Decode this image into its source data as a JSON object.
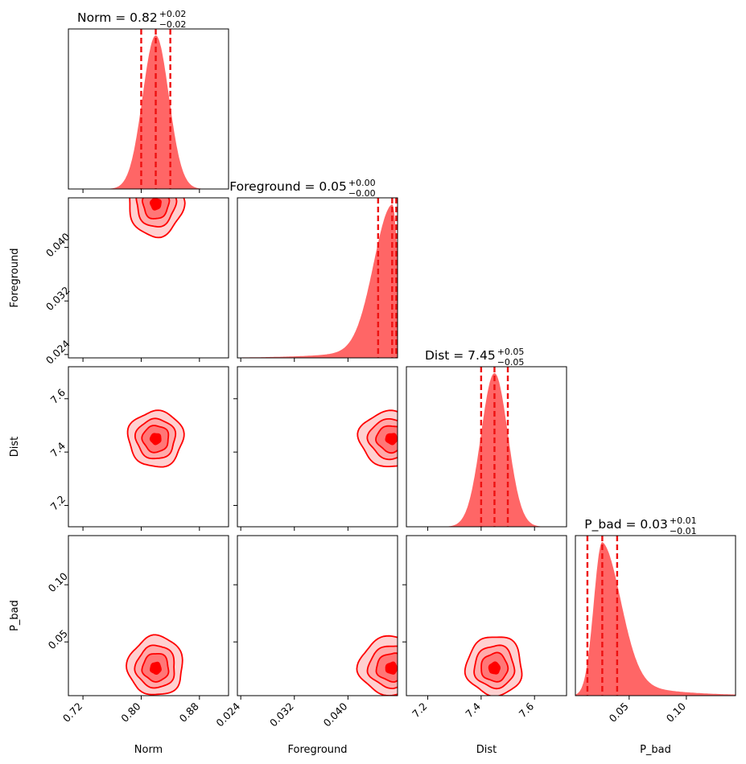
{
  "chart_data": {
    "type": "corner",
    "parameters": [
      {
        "key": "norm",
        "xlabel": "Norm",
        "ylabel": "",
        "range": [
          0.7,
          0.92
        ],
        "ticks": [
          0.72,
          0.8,
          0.88
        ],
        "tick_labels": [
          "0.72",
          "0.80",
          "0.88"
        ],
        "median": 0.82,
        "q16": 0.8,
        "q84": 0.84,
        "sigma": 0.018,
        "skew": 0,
        "title": {
          "prefix": "Norm = 0.82",
          "sup": "+0.02",
          "sub": "−0.02"
        }
      },
      {
        "key": "foreground",
        "xlabel": "Foreground",
        "ylabel": "Foreground",
        "range": [
          0.0235,
          0.0474
        ],
        "ticks": [
          0.024,
          0.032,
          0.04
        ],
        "tick_labels": [
          "0.024",
          "0.032",
          "0.040"
        ],
        "median": 0.0466,
        "q16": 0.0445,
        "q84": 0.0472,
        "sigma": 0.0018,
        "skew": -1,
        "title": {
          "prefix": "Foreground = 0.05",
          "sup": "+0.00",
          "sub": "−0.00"
        }
      },
      {
        "key": "dist",
        "xlabel": "Dist",
        "ylabel": "Dist",
        "range": [
          7.12,
          7.72
        ],
        "ticks": [
          7.2,
          7.4,
          7.6
        ],
        "tick_labels": [
          "7.2",
          "7.4",
          "7.6"
        ],
        "median": 7.45,
        "q16": 7.4,
        "q84": 7.5,
        "sigma": 0.05,
        "skew": 0,
        "title": {
          "prefix": "Dist = 7.45",
          "sup": "+0.05",
          "sub": "−0.05"
        }
      },
      {
        "key": "p_bad",
        "xlabel": "P_bad",
        "ylabel": "P_bad",
        "range": [
          0.003,
          0.143
        ],
        "ticks": [
          0.05,
          0.1
        ],
        "tick_labels": [
          "0.05",
          "0.10"
        ],
        "median": 0.0265,
        "q16": 0.0135,
        "q84": 0.0395,
        "sigma": 0.011,
        "skew": 1,
        "title": {
          "prefix": "P_bad = 0.03",
          "sup": "+0.01",
          "sub": "−0.01"
        }
      }
    ],
    "colors": {
      "fill": "#ff6666",
      "contour_line": "#ff0000",
      "quantile_line": "#ee1111",
      "axes": "#000000"
    }
  }
}
